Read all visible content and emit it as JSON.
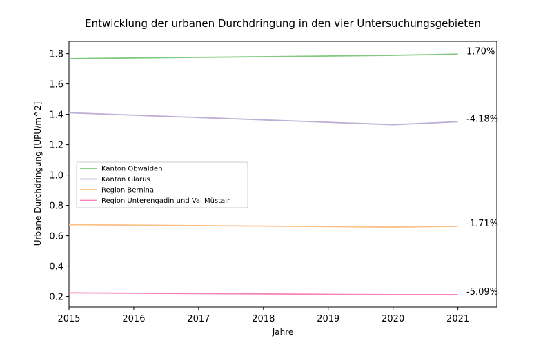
{
  "chart_data": {
    "type": "line",
    "title": "Entwicklung der urbanen Durchdringung in den vier Untersuchungsgebieten",
    "xlabel": "Jahre",
    "ylabel": "Urbane Durchdringung [UPU/m^2]",
    "x": [
      2015,
      2020,
      2021
    ],
    "xticks": [
      "2015",
      "2016",
      "2017",
      "2018",
      "2019",
      "2020",
      "2021"
    ],
    "xlim": [
      2015,
      2021.6
    ],
    "yticks": [
      "0.2",
      "0.4",
      "0.6",
      "0.8",
      "1.0",
      "1.2",
      "1.4",
      "1.6",
      "1.8"
    ],
    "ylim": [
      0.13,
      1.88
    ],
    "grid": false,
    "legend_position": "center-left",
    "series": [
      {
        "name": "Kanton Obwalden",
        "values": [
          1.767,
          1.789,
          1.797
        ],
        "color": "#7fc97f",
        "end_label": "1.70%"
      },
      {
        "name": "Kanton Glarus",
        "values": [
          1.41,
          1.332,
          1.351
        ],
        "color": "#beaed4",
        "end_label": "-4.18%"
      },
      {
        "name": "Region Bernina",
        "values": [
          0.673,
          0.657,
          0.662
        ],
        "color": "#fdc086",
        "end_label": "-1.71%"
      },
      {
        "name": "Region Unterengadin und Val Müstair",
        "values": [
          0.224,
          0.212,
          0.212
        ],
        "color": "#f781bf",
        "end_label": "-5.09%"
      }
    ]
  }
}
